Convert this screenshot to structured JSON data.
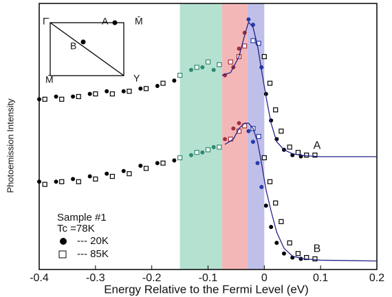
{
  "chart_data": {
    "type": "scatter",
    "x_label": "Energy Relative to the Fermi Level (eV)",
    "y_label": "Photoemission Intensity",
    "xlim": [
      -0.4,
      0.2
    ],
    "xticks": [
      -0.4,
      -0.3,
      -0.2,
      -0.1,
      0,
      0.1,
      0.2
    ],
    "ylim": [
      0,
      100
    ],
    "bands": [
      {
        "from": -0.15,
        "to": -0.075,
        "color": "#a8dcc8",
        "marker_color": "#2e8a70"
      },
      {
        "from": -0.075,
        "to": -0.03,
        "color": "#f2aaaa",
        "marker_color": "#a03040"
      },
      {
        "from": -0.03,
        "to": 0,
        "color": "#b4b4e6",
        "marker_color": "#2a3aa8"
      }
    ],
    "legend": {
      "lines": [
        "Sample #1",
        "Tc =78K"
      ],
      "entries": [
        {
          "name": "--- 20K",
          "marker": "circle"
        },
        {
          "name": "--- 85K",
          "marker": "square"
        }
      ]
    },
    "inset": {
      "labels": [
        "Γ̄",
        "A",
        "M̄",
        "B",
        "M̄",
        "Y"
      ]
    },
    "curves": [
      {
        "label": "A",
        "series": [
          {
            "x": [
              -0.4,
              -0.37,
              -0.34,
              -0.31,
              -0.28,
              -0.25,
              -0.22,
              -0.19,
              -0.16,
              -0.13,
              -0.11,
              -0.09,
              -0.07,
              -0.055,
              -0.045,
              -0.035,
              -0.028,
              -0.02,
              -0.012,
              -0.005,
              0.003,
              0.012,
              0.022,
              0.035,
              0.05,
              0.065
            ],
            "values": [
              64,
              65,
              65,
              66,
              67,
              67,
              68,
              69,
              71,
              75,
              76,
              75,
              73,
              76,
              83,
              89,
              94,
              92,
              85,
              76,
              66,
              56,
              49,
              45,
              43,
              42.5
            ]
          },
          {
            "x": [
              -0.39,
              -0.36,
              -0.33,
              -0.3,
              -0.27,
              -0.24,
              -0.21,
              -0.18,
              -0.15,
              -0.12,
              -0.1,
              -0.08,
              -0.06,
              -0.045,
              -0.035,
              -0.02,
              -0.01,
              0,
              0.01,
              0.02,
              0.03,
              0.045,
              0.06,
              0.075,
              0.09
            ],
            "values": [
              64,
              64,
              65,
              66,
              66,
              67,
              68,
              70,
              73,
              76,
              78,
              77,
              78,
              80,
              84,
              86,
              85,
              80,
              70,
              60,
              52,
              46,
              44,
              43,
              43
            ]
          }
        ],
        "fit": {
          "x": [
            -0.075,
            -0.06,
            -0.045,
            -0.035,
            -0.028,
            -0.02,
            -0.012,
            -0.005,
            0.003,
            0.012,
            0.022,
            0.035,
            0.05,
            0.07,
            0.1,
            0.2
          ],
          "values": [
            73,
            74,
            80,
            88,
            93,
            91,
            84,
            75,
            65,
            55,
            48,
            45,
            43.5,
            42.8,
            42.4,
            42.4
          ]
        }
      },
      {
        "label": "B",
        "series": [
          {
            "x": [
              -0.4,
              -0.37,
              -0.34,
              -0.31,
              -0.28,
              -0.25,
              -0.22,
              -0.19,
              -0.16,
              -0.13,
              -0.11,
              -0.09,
              -0.07,
              -0.055,
              -0.045,
              -0.035,
              -0.028,
              -0.02,
              -0.012,
              -0.005,
              0.003,
              0.012,
              0.022,
              0.035,
              0.05,
              0.065
            ],
            "values": [
              33,
              33,
              34,
              35,
              36,
              37,
              39,
              40,
              41,
              43,
              44,
              46,
              49,
              53,
              55,
              54,
              52,
              48,
              40,
              31,
              24,
              16,
              10,
              6,
              4.5,
              4
            ]
          },
          {
            "x": [
              -0.39,
              -0.36,
              -0.33,
              -0.3,
              -0.27,
              -0.24,
              -0.21,
              -0.18,
              -0.15,
              -0.12,
              -0.1,
              -0.08,
              -0.06,
              -0.045,
              -0.035,
              -0.02,
              -0.01,
              0,
              0.01,
              0.02,
              0.03,
              0.045,
              0.06,
              0.075,
              0.09
            ],
            "values": [
              32,
              33,
              33,
              34,
              35,
              36,
              38,
              40,
              42,
              44,
              45,
              46,
              49,
              52,
              54,
              53,
              50,
              42,
              33,
              25,
              18,
              10,
              6,
              4.5,
              4
            ]
          }
        ],
        "fit": {
          "x": [
            -0.07,
            -0.055,
            -0.045,
            -0.035,
            -0.028,
            -0.02,
            -0.012,
            -0.005,
            0.003,
            0.012,
            0.022,
            0.035,
            0.05,
            0.07,
            0.1,
            0.2
          ],
          "values": [
            47,
            49,
            53,
            55,
            55,
            53,
            48,
            40,
            30,
            22,
            14,
            8,
            5,
            4,
            3.5,
            3.2
          ]
        }
      }
    ]
  }
}
